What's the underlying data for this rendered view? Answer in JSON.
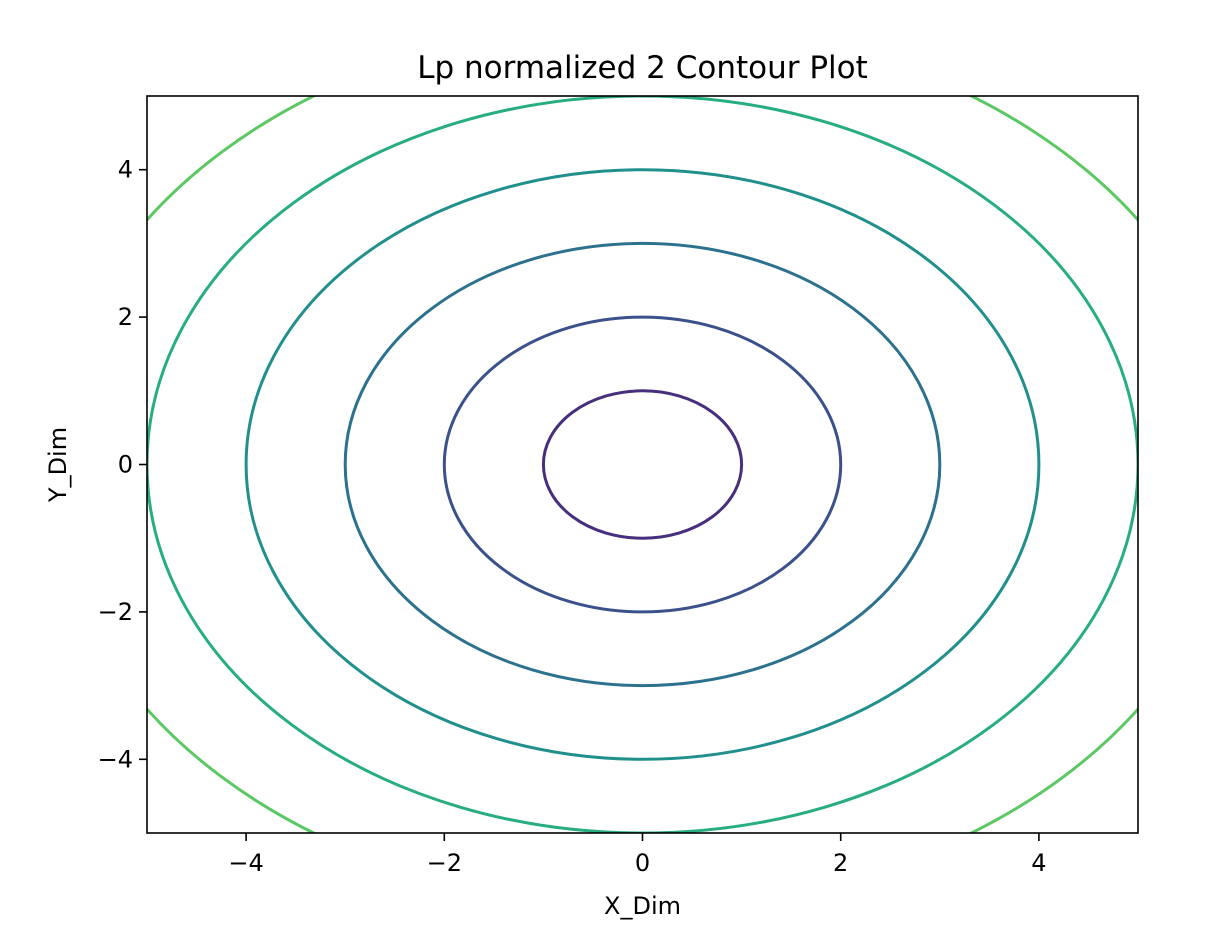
{
  "chart_data": {
    "type": "contour",
    "title": "Lp normalized 2 Contour Plot",
    "xlabel": "X_Dim",
    "ylabel": "Y_Dim",
    "xlim": [
      -5,
      5
    ],
    "ylim": [
      -5,
      5
    ],
    "xticks": [
      -4,
      -2,
      0,
      2,
      4
    ],
    "yticks": [
      -4,
      -2,
      0,
      2,
      4
    ],
    "xtick_labels": [
      "−4",
      "−2",
      "0",
      "2",
      "4"
    ],
    "ytick_labels": [
      "−4",
      "−2",
      "0",
      "2",
      "4"
    ],
    "function": "sqrt(x^2 + y^2)",
    "p_norm": 2,
    "grid": false,
    "levels": [
      {
        "value": 1,
        "color": "#472f7d"
      },
      {
        "value": 2,
        "color": "#3b518b"
      },
      {
        "value": 3,
        "color": "#2c718e"
      },
      {
        "value": 4,
        "color": "#21908d"
      },
      {
        "value": 5,
        "color": "#27ad81"
      },
      {
        "value": 6,
        "color": "#5cc863"
      }
    ]
  }
}
